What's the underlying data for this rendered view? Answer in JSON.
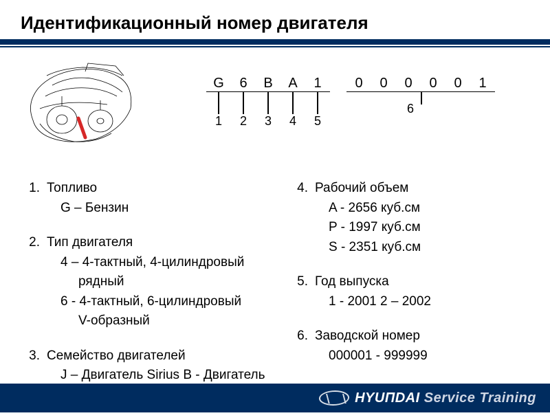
{
  "title": "Идентификационный номер двигателя",
  "engine_code": {
    "left_chars": [
      "G",
      "6",
      "B",
      "A",
      "1"
    ],
    "left_labels": [
      "1",
      "2",
      "3",
      "4",
      "5"
    ],
    "right_chars": [
      "0",
      "0",
      "0",
      "0",
      "0",
      "1"
    ],
    "right_label": "6"
  },
  "left_items": [
    {
      "num": "1.",
      "head": "Топливо",
      "lines": [
        "G – Бензин"
      ]
    },
    {
      "num": "2.",
      "head": "Тип двигателя",
      "lines": [
        "4 – 4-тактный, 4-цилиндровый",
        "рядный",
        "6 - 4-тактный, 6-цилиндровый",
        "V-образный"
      ]
    },
    {
      "num": "3.",
      "head": "Семейство двигателей",
      "lines": [
        "J – Двигатель Sirius  B - Двигатель Delta"
      ]
    }
  ],
  "right_items": [
    {
      "num": "4.",
      "head": "Рабочий объем",
      "lines": [
        "A - 2656 куб.см",
        "P - 1997 куб.см",
        "S - 2351 куб.см"
      ]
    },
    {
      "num": "5.",
      "head": "Год выпуска",
      "lines": [
        "1 - 2001        2 – 2002"
      ]
    },
    {
      "num": "6.",
      "head": "Заводской номер",
      "lines": [
        "000001 - 999999"
      ]
    }
  ],
  "footer": {
    "brand": "НYUПDAI",
    "service": "Service",
    "training": "Training"
  },
  "colors": {
    "brand_navy": "#002c5f",
    "highlight_red": "#d62828",
    "footer_text": "#ffffff",
    "footer_sub": "#cfd6e4",
    "background": "#ffffff",
    "text": "#000000"
  }
}
